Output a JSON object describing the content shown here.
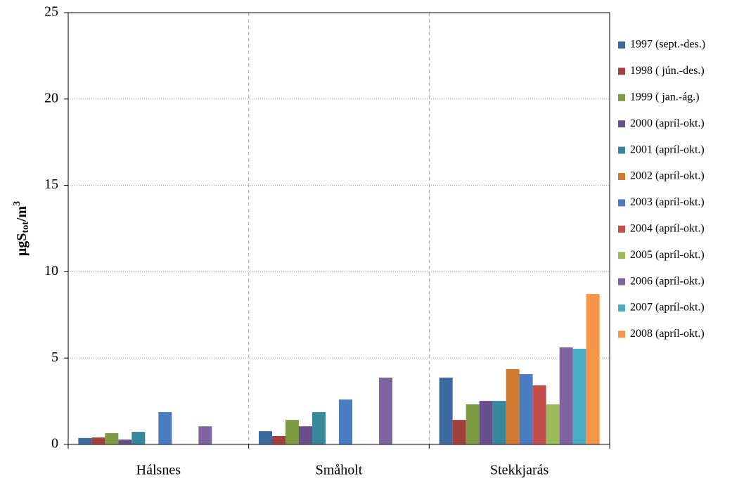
{
  "chart_data": {
    "type": "bar",
    "y_label": [
      "µgS",
      "tot",
      "/m",
      "3"
    ],
    "categories": [
      "Hálsnes",
      "Småholt",
      "Stekkjarás"
    ],
    "ylim": [
      0,
      25
    ],
    "yticks": [
      0,
      5,
      10,
      15,
      20,
      25
    ],
    "grid": true,
    "legend": "right",
    "series": [
      {
        "name": "1997 (sept.-des.)",
        "color": "#3c6aa0",
        "values": [
          0.37,
          0.77,
          3.87
        ]
      },
      {
        "name": "1998 ( jún.-des.)",
        "color": "#a33f3c",
        "values": [
          0.4,
          0.49,
          1.42
        ]
      },
      {
        "name": "1999 ( jan.-ág.)",
        "color": "#7e9b44",
        "values": [
          0.65,
          1.42,
          2.32
        ]
      },
      {
        "name": "2000 (apríl-okt.)",
        "color": "#674f8b",
        "values": [
          0.28,
          1.05,
          2.52
        ]
      },
      {
        "name": "2001 (apríl-okt.)",
        "color": "#38889d",
        "values": [
          0.73,
          1.87,
          2.52
        ]
      },
      {
        "name": "2002 (apríl-okt.)",
        "color": "#d07a30",
        "values": [
          null,
          null,
          4.36
        ]
      },
      {
        "name": "2003 (apríl-okt.)",
        "color": "#4b7bc1",
        "values": [
          1.87,
          2.6,
          4.07
        ]
      },
      {
        "name": "2004 (apríl-okt.)",
        "color": "#c34e4b",
        "values": [
          null,
          null,
          3.42
        ]
      },
      {
        "name": "2005 (apríl-okt.)",
        "color": "#9bbb59",
        "values": [
          null,
          null,
          2.32
        ]
      },
      {
        "name": "2006 (apríl-okt.)",
        "color": "#8064a2",
        "values": [
          1.05,
          3.87,
          5.62
        ]
      },
      {
        "name": "2007 (apríl-okt.)",
        "color": "#4bacc6",
        "values": [
          null,
          null,
          5.54
        ]
      },
      {
        "name": "2008 (apríl-okt.)",
        "color": "#f79646",
        "values": [
          null,
          null,
          8.71
        ]
      }
    ]
  }
}
